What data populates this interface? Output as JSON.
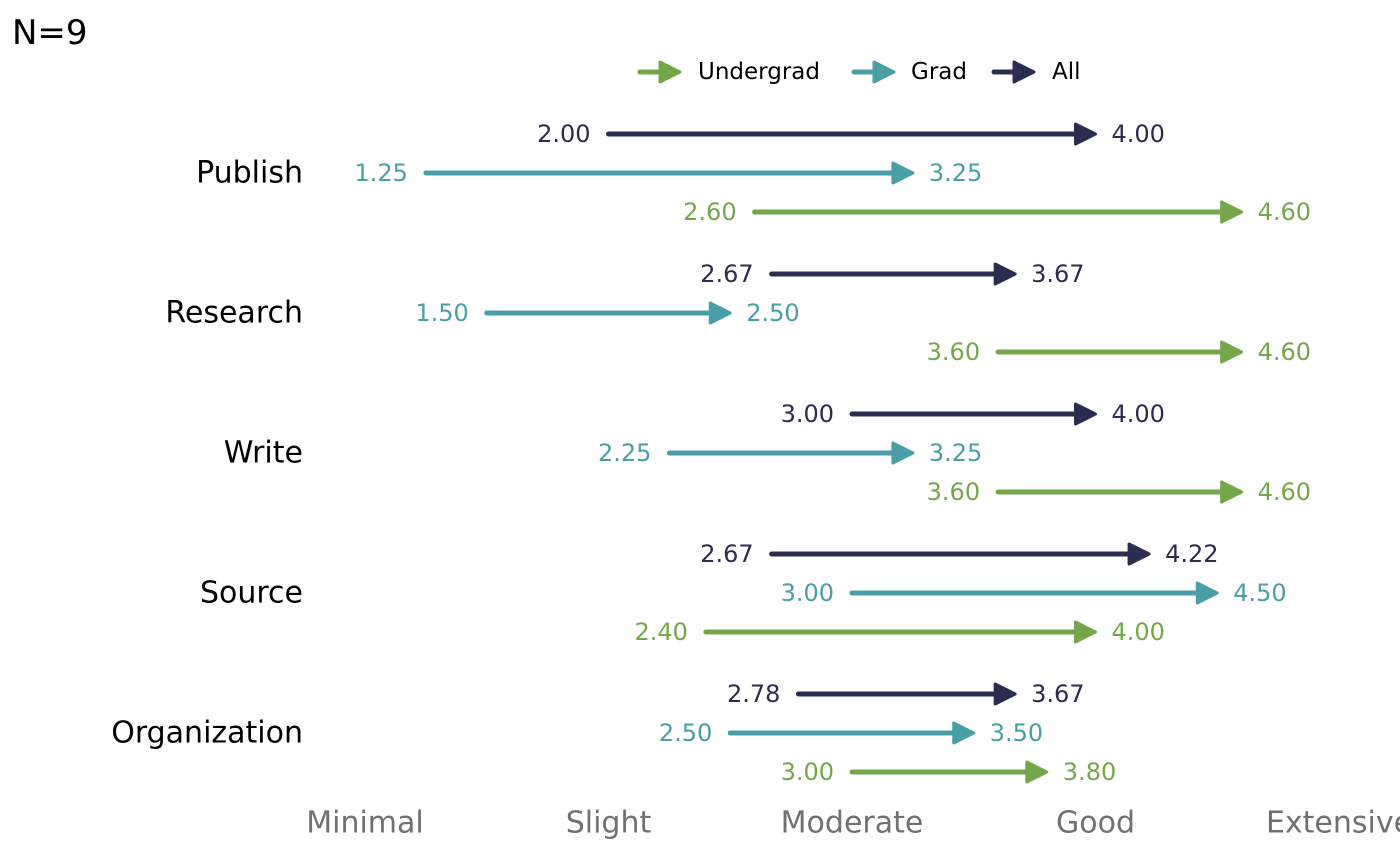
{
  "chart_data": {
    "type": "arrow",
    "title": "N=9",
    "x_scale": {
      "min": 1,
      "max": 5,
      "ticks": [
        {
          "value": 1,
          "label": "Minimal"
        },
        {
          "value": 2,
          "label": "Slight"
        },
        {
          "value": 3,
          "label": "Moderate"
        },
        {
          "value": 4,
          "label": "Good"
        },
        {
          "value": 5,
          "label": "Extensive"
        }
      ]
    },
    "legend": {
      "position": "top",
      "entries": [
        {
          "key": "undergrad",
          "name": "Undergrad"
        },
        {
          "key": "grad",
          "name": "Grad"
        },
        {
          "key": "all",
          "name": "All"
        }
      ]
    },
    "colors": {
      "undergrad": "#75a74a",
      "grad": "#4a9fa7",
      "all": "#2b2d4e"
    },
    "categories": [
      "Publish",
      "Research",
      "Write",
      "Source",
      "Organization"
    ],
    "series": [
      {
        "key": "all",
        "name": "All",
        "from": [
          2.0,
          2.67,
          3.0,
          2.67,
          2.78
        ],
        "to": [
          4.0,
          3.67,
          4.0,
          4.22,
          3.67
        ],
        "from_labels": [
          "2.00",
          "2.67",
          "3.00",
          "2.67",
          "2.78"
        ],
        "to_labels": [
          "4.00",
          "3.67",
          "4.00",
          "4.22",
          "3.67"
        ]
      },
      {
        "key": "grad",
        "name": "Grad",
        "from": [
          1.25,
          1.5,
          2.25,
          3.0,
          2.5
        ],
        "to": [
          3.25,
          2.5,
          3.25,
          4.5,
          3.5
        ],
        "from_labels": [
          "1.25",
          "1.50",
          "2.25",
          "3.00",
          "2.50"
        ],
        "to_labels": [
          "3.25",
          "2.50",
          "3.25",
          "4.50",
          "3.50"
        ]
      },
      {
        "key": "undergrad",
        "name": "Undergrad",
        "from": [
          2.6,
          3.6,
          3.6,
          2.4,
          3.0
        ],
        "to": [
          4.6,
          4.6,
          4.6,
          4.0,
          3.8
        ],
        "from_labels": [
          "2.60",
          "3.60",
          "3.60",
          "2.40",
          "3.00"
        ],
        "to_labels": [
          "4.60",
          "4.60",
          "4.60",
          "4.00",
          "3.80"
        ]
      }
    ]
  }
}
